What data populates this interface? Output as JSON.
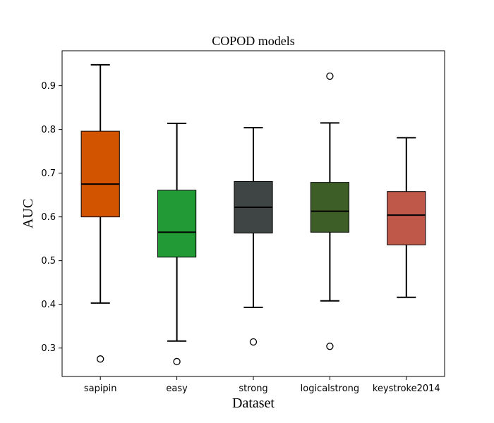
{
  "chart_data": {
    "type": "boxplot",
    "title": "COPOD models",
    "xlabel": "Dataset",
    "ylabel": "AUC",
    "ylim": [
      0.235,
      0.98
    ],
    "yticks": [
      0.3,
      0.4,
      0.5,
      0.6,
      0.7,
      0.8,
      0.9
    ],
    "ytick_labels": [
      "0.3",
      "0.4",
      "0.5",
      "0.6",
      "0.7",
      "0.8",
      "0.9"
    ],
    "grid": false,
    "legend": "none",
    "categories": [
      "sapipin",
      "easy",
      "strong",
      "logicalstrong",
      "keystroke2014"
    ],
    "boxes": [
      {
        "category": "sapipin",
        "whisker_low": 0.403,
        "q1": 0.6,
        "median": 0.675,
        "q3": 0.796,
        "whisker_high": 0.948,
        "outliers": [
          0.275
        ],
        "color": "#d35400"
      },
      {
        "category": "easy",
        "whisker_low": 0.316,
        "q1": 0.508,
        "median": 0.565,
        "q3": 0.661,
        "whisker_high": 0.814,
        "outliers": [
          0.269
        ],
        "color": "#229a35"
      },
      {
        "category": "strong",
        "whisker_low": 0.393,
        "q1": 0.563,
        "median": 0.622,
        "q3": 0.681,
        "whisker_high": 0.804,
        "outliers": [
          0.314
        ],
        "color": "#3f4444"
      },
      {
        "category": "logicalstrong",
        "whisker_low": 0.408,
        "q1": 0.565,
        "median": 0.613,
        "q3": 0.679,
        "whisker_high": 0.815,
        "outliers": [
          0.304,
          0.922
        ],
        "color": "#3d5f27"
      },
      {
        "category": "keystroke2014",
        "whisker_low": 0.416,
        "q1": 0.536,
        "median": 0.604,
        "q3": 0.658,
        "whisker_high": 0.781,
        "outliers": [],
        "color": "#c0584a"
      }
    ]
  }
}
